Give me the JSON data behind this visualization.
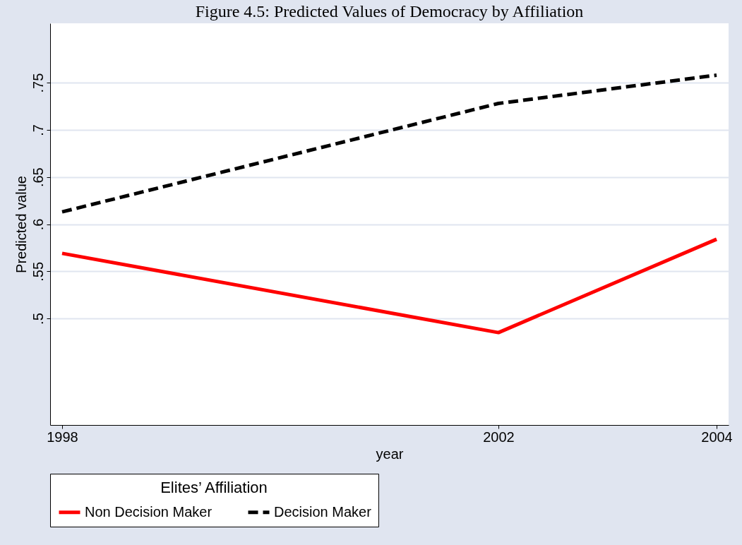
{
  "chart_data": {
    "type": "line",
    "title": "Figure 4.5: Predicted Values of Democracy by Affiliation",
    "xlabel": "year",
    "ylabel": "Predicted value",
    "legend_title": "Elites’ Affiliation",
    "x": [
      1998,
      2002,
      2004
    ],
    "series": [
      {
        "name": "Non Decision Maker",
        "color": "#ff0000",
        "line_style": "solid",
        "values": [
          0.569,
          0.485,
          0.584
        ]
      },
      {
        "name": "Decision Maker",
        "color": "#000000",
        "line_style": "dashed",
        "values": [
          0.613,
          0.728,
          0.758
        ]
      }
    ],
    "xlim": [
      1997.89,
      2004.11
    ],
    "xticks": [
      1998,
      2002,
      2004
    ],
    "ylim": [
      0.387,
      0.813
    ],
    "yticks": [
      {
        "value": 0.5,
        "label": ".5"
      },
      {
        "value": 0.55,
        "label": ".55"
      },
      {
        "value": 0.6,
        "label": ".6"
      },
      {
        "value": 0.65,
        "label": ".65"
      },
      {
        "value": 0.7,
        "label": ".7"
      },
      {
        "value": 0.75,
        "label": ".75"
      }
    ],
    "grid": "y",
    "legend": "bottom",
    "marker": "none"
  }
}
